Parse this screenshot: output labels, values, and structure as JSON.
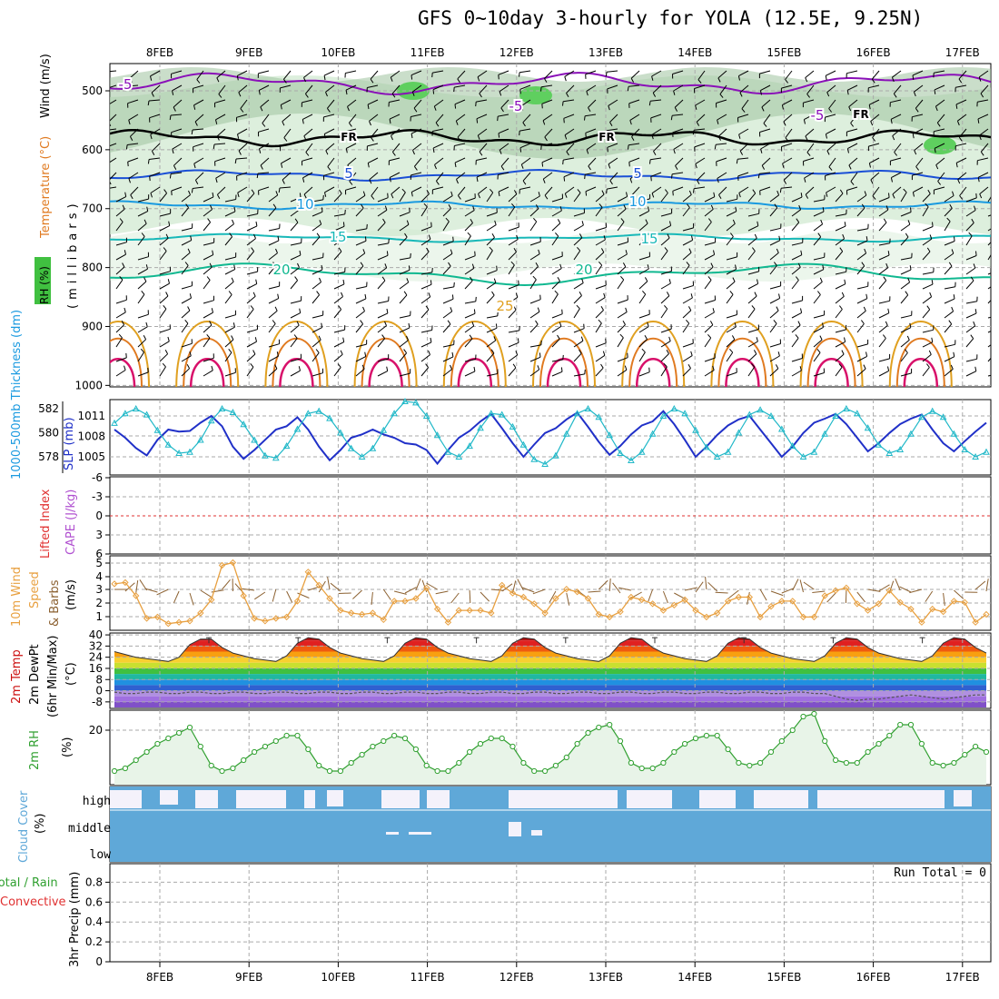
{
  "title": "GFS 0~10day 3-hourly for YOLA (12.5E, 9.25N)",
  "dates": [
    "8FEB",
    "9FEB",
    "10FEB",
    "11FEB",
    "12FEB",
    "13FEB",
    "14FEB",
    "15FEB",
    "16FEB",
    "17FEB"
  ],
  "colors": {
    "rh_fill": "#cfe8cf",
    "rh_fill2": "#9fc39f",
    "rh_fill3": "#5fcf5f",
    "temp_m5": "#8a10b8",
    "temp_fr": "#000000",
    "temp_5": "#1a4fd6",
    "temp_10": "#1a9ae0",
    "temp_15": "#18b8b8",
    "temp_20": "#10b890",
    "temp_25": "#e0a020",
    "temp_30": "#e07a20",
    "temp_35": "#d8106a",
    "slp": "#2030c8",
    "thickness": "#20b8c8",
    "lifted": "#e03030",
    "wind10": "#e8a040",
    "temp2m": "#cc1010",
    "rh2m": "#30a030",
    "cloud": "#5fa8d8",
    "precip_total": "#30a030",
    "precip_conv": "#e03030",
    "grid": "#aaaaaa"
  },
  "panels": {
    "upper": {
      "ylabel_rh": "RH (%)",
      "ylabel_temp": "Temperature (°C)",
      "ylabel_wind": "Wind (m/s)",
      "ylabel_units": "(millibars)",
      "yticks": [
        "500",
        "600",
        "700",
        "800",
        "900",
        "1000"
      ],
      "contour_labels": [
        "-5",
        "-5",
        "-5",
        "FR",
        "FR",
        "FR",
        "5",
        "5",
        "10",
        "10",
        "15",
        "15",
        "20",
        "20",
        "25"
      ]
    },
    "slp": {
      "ylabel_thick": "1000-500mb Thickness (dm)",
      "ylabel_slp": "SLP (mb)",
      "yticks_left": [
        "582",
        "580",
        "578"
      ],
      "yticks_right": [
        "1011",
        "1008",
        "1005"
      ]
    },
    "cape": {
      "ylabel_li": "Lifted Index",
      "ylabel_cape": "CAPE (J/kg)",
      "yticks": [
        "-6",
        "-3",
        "0",
        "3",
        "6"
      ]
    },
    "wind10": {
      "ylabel": "10m Wind",
      "ylabel2": "Speed",
      "ylabel3": "& Barbs",
      "ylabel_units": "(m/s)",
      "yticks": [
        "5",
        "4",
        "3",
        "2",
        "1"
      ]
    },
    "temp2m": {
      "ylabel": "2m Temp",
      "ylabel2": "2m DewPt",
      "ylabel3": "(6hr Min/Max)",
      "ylabel_units": "(°C)",
      "yticks": [
        "40",
        "32",
        "24",
        "16",
        "8",
        "0",
        "-8"
      ]
    },
    "rh2m": {
      "ylabel": "2m RH",
      "ylabel_units": "(%)",
      "yticks": [
        "20"
      ]
    },
    "cloud": {
      "ylabel": "Cloud Cover",
      "ylabel_units": "(%)",
      "levels": [
        "high",
        "middle",
        "low"
      ]
    },
    "precip": {
      "ylabel_total": "Total / Rain",
      "ylabel_conv": "Convective",
      "ylabel_units": "3hr Precip (mm)",
      "run_total": "Run Total = 0",
      "yticks": [
        "0.8",
        "0.6",
        "0.4",
        "0.2",
        "0"
      ]
    }
  },
  "chart_data": [
    {
      "type": "line",
      "name": "slp",
      "title": "",
      "xlabel": "",
      "ylabel": "SLP (mb)",
      "ylim": [
        1003,
        1013
      ],
      "values": [
        1009.0,
        1007.8,
        1006.3,
        1005.2,
        1007.5,
        1009.0,
        1008.7,
        1008.8,
        1010.0,
        1011.0,
        1009.5,
        1006.5,
        1004.7,
        1006.0,
        1007.5,
        1009.0,
        1009.5,
        1010.8,
        1009.0,
        1006.5,
        1004.5,
        1006.0,
        1007.8,
        1008.3,
        1009.0,
        1008.3,
        1007.8,
        1007.0,
        1006.8,
        1006.0,
        1004.0,
        1006.0,
        1007.8,
        1008.8,
        1010.2,
        1011.3,
        1009.2,
        1007.0,
        1005.0,
        1006.8,
        1008.5,
        1009.2,
        1010.5,
        1011.5,
        1009.4,
        1007.2,
        1005.3,
        1006.6,
        1008.3,
        1009.6,
        1010.2,
        1011.7,
        1009.8,
        1007.5,
        1005.0,
        1006.5,
        1008.2,
        1009.6,
        1010.5,
        1011.0,
        1009.0,
        1007.0,
        1005.0,
        1006.5,
        1008.5,
        1010.0,
        1010.6,
        1011.3,
        1009.8,
        1007.8,
        1005.8,
        1007.0,
        1008.5,
        1009.8,
        1010.6,
        1011.2,
        1009.0,
        1007.0,
        1005.8,
        1007.3,
        1008.7,
        1010.0
      ]
    },
    {
      "type": "line",
      "name": "thickness",
      "title": "",
      "xlabel": "",
      "ylabel": "1000-500mb Thickness (dm)",
      "ylim": [
        576,
        584
      ],
      "values": [
        580.8,
        581.6,
        582.0,
        581.5,
        580.2,
        579.0,
        578.3,
        578.4,
        579.4,
        581.0,
        582.0,
        581.7,
        580.7,
        579.4,
        578.1,
        577.9,
        578.9,
        580.3,
        581.6,
        581.8,
        581.2,
        580.0,
        578.7,
        578.0,
        578.7,
        580.2,
        581.6,
        582.6,
        582.5,
        581.4,
        579.8,
        578.4,
        578.0,
        578.9,
        580.4,
        581.6,
        581.5,
        580.5,
        579.0,
        577.8,
        577.4,
        578.1,
        579.9,
        581.6,
        582.0,
        581.3,
        579.8,
        578.3,
        577.7,
        578.4,
        579.9,
        581.4,
        582.0,
        581.6,
        580.2,
        578.8,
        578.0,
        578.4,
        580.0,
        581.5,
        581.9,
        581.4,
        580.3,
        578.9,
        578.0,
        578.4,
        579.9,
        581.4,
        582.0,
        581.6,
        580.4,
        579.0,
        578.3,
        578.6,
        579.9,
        581.3,
        581.8,
        581.3,
        579.9,
        578.6,
        578.0,
        578.4
      ]
    },
    {
      "type": "line",
      "name": "wind_speed_10m",
      "title": "",
      "xlabel": "",
      "ylabel": "Speed (m/s)",
      "ylim": [
        0,
        5.5
      ],
      "values": [
        3.5,
        3.6,
        2.6,
        0.9,
        1.0,
        0.5,
        0.6,
        0.7,
        1.3,
        2.3,
        4.9,
        5.1,
        2.6,
        0.9,
        0.7,
        0.9,
        1.0,
        2.2,
        4.4,
        3.4,
        2.4,
        1.5,
        1.3,
        1.2,
        1.3,
        0.8,
        2.2,
        2.2,
        2.4,
        3.2,
        1.6,
        0.6,
        1.5,
        1.5,
        1.5,
        1.3,
        3.4,
        2.8,
        2.5,
        2.0,
        1.3,
        2.4,
        3.1,
        2.9,
        2.4,
        1.2,
        1.0,
        1.4,
        2.5,
        2.3,
        2.0,
        1.5,
        1.9,
        2.3,
        1.5,
        1.0,
        1.3,
        2.2,
        2.5,
        2.5,
        1.0,
        1.8,
        2.2,
        2.2,
        1.0,
        1.0,
        2.6,
        3.0,
        3.2,
        2.0,
        1.5,
        2.0,
        3.0,
        2.1,
        1.6,
        0.6,
        1.6,
        1.4,
        2.2,
        2.1,
        0.6,
        1.2
      ]
    },
    {
      "type": "area",
      "name": "temp_2m",
      "title": "",
      "xlabel": "",
      "ylabel": "(°C)",
      "ylim": [
        -12,
        42
      ],
      "values": [
        28,
        26,
        24,
        23,
        22,
        21,
        24,
        33,
        37,
        37,
        31,
        27,
        25,
        23,
        22,
        21,
        25,
        34,
        38,
        37,
        31,
        27,
        25,
        23,
        22,
        21,
        25,
        34,
        38,
        37,
        31,
        27,
        25,
        23,
        22,
        21,
        25,
        34,
        38,
        37,
        31,
        27,
        25,
        23,
        22,
        21,
        25,
        34,
        38,
        37,
        31,
        27,
        25,
        23,
        22,
        21,
        25,
        34,
        38,
        37,
        31,
        27,
        25,
        23,
        22,
        21,
        25,
        34,
        38,
        37,
        31,
        27,
        25,
        23,
        22,
        21,
        25,
        34,
        38,
        37,
        31,
        27
      ]
    },
    {
      "type": "line",
      "name": "dewpoint_2m",
      "title": "",
      "xlabel": "",
      "ylabel": "(°C)",
      "ylim": [
        -12,
        42
      ],
      "values": [
        -1,
        -2,
        -2,
        -1,
        -1,
        -2,
        -2,
        -1,
        -1,
        -2,
        -2,
        -1,
        -1,
        -2,
        -2,
        -1,
        -1,
        -2,
        -2,
        -1,
        -1,
        -2,
        -2,
        -1,
        -1,
        -2,
        -2,
        -1,
        -1,
        -2,
        -2,
        -1,
        -1,
        -2,
        -2,
        -1,
        -1,
        -2,
        -2,
        -1,
        -1,
        -2,
        -2,
        -1,
        -1,
        -2,
        -2,
        -1,
        -1,
        -2,
        -2,
        -1,
        -1,
        -2,
        -2,
        -1,
        -1,
        -2,
        -2,
        -1,
        -1,
        -2,
        -2,
        -1,
        -1,
        -2,
        -2,
        -4,
        -6,
        -7,
        -6,
        -6,
        -5,
        -4,
        -3,
        -4,
        -5,
        -6,
        -5,
        -4,
        -3,
        -3
      ]
    },
    {
      "type": "line",
      "name": "rh_2m",
      "title": "",
      "xlabel": "",
      "ylabel": "(%)",
      "ylim": [
        0,
        30
      ],
      "values": [
        5,
        6,
        9,
        12,
        15,
        17,
        19,
        21,
        14,
        7,
        5,
        6,
        9,
        12,
        14,
        16,
        18,
        18,
        13,
        7,
        5,
        5,
        8,
        11,
        14,
        16,
        18,
        17,
        13,
        7,
        5,
        5,
        8,
        12,
        15,
        17,
        17,
        14,
        8,
        5,
        5,
        7,
        10,
        15,
        19,
        21,
        22,
        16,
        8,
        6,
        6,
        8,
        12,
        15,
        17,
        18,
        18,
        13,
        8,
        7,
        8,
        12,
        16,
        20,
        25,
        26,
        16,
        9,
        8,
        8,
        12,
        15,
        18,
        22,
        22,
        15,
        8,
        7,
        8,
        11,
        14,
        12
      ]
    }
  ]
}
